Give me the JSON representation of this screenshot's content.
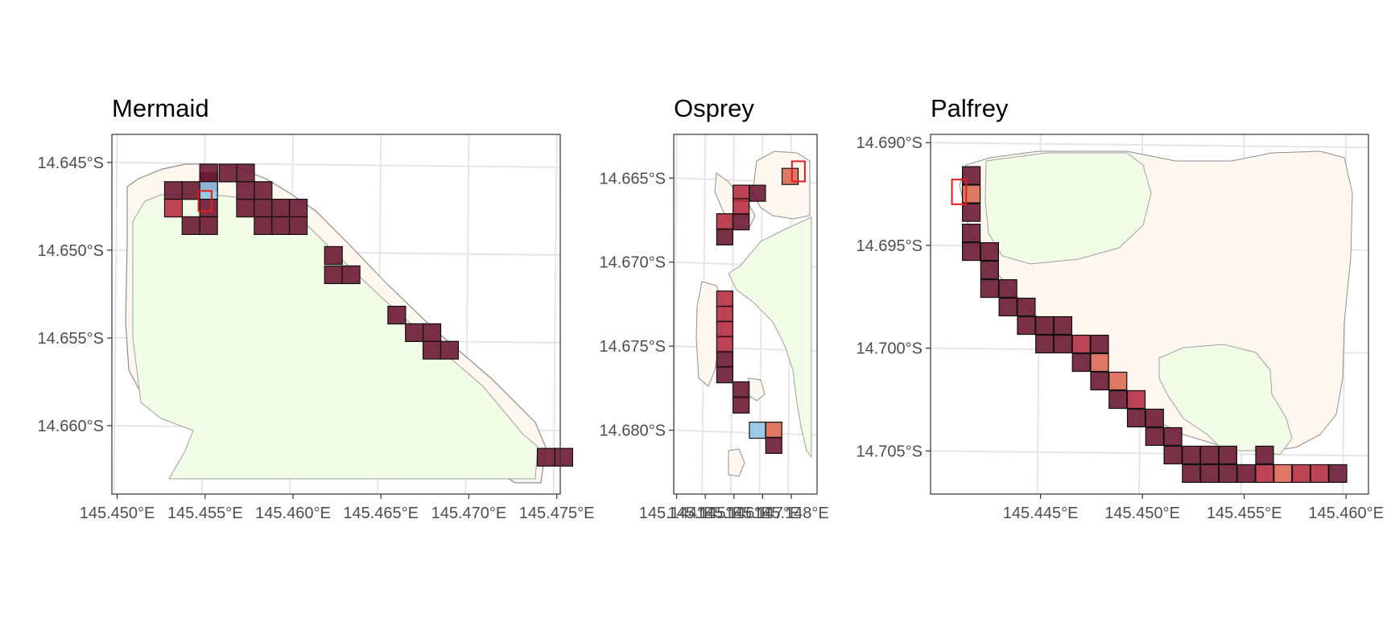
{
  "colors": {
    "background": "#ffffff",
    "grid": "#e6e6e6",
    "panel_border": "#333333",
    "land": "#fdf7f0",
    "reef_flat": "#f1fde6",
    "cell_dark": "#6b1a33",
    "cell_mid": "#b63043",
    "cell_light": "#dc6a55",
    "cell_blue": "#92c4e3",
    "highlight": "#e41a1c"
  },
  "chart_data": [
    {
      "type": "heatmap",
      "title": "Mermaid",
      "xlim": [
        145.4497,
        145.4752
      ],
      "ylim": [
        -14.6639,
        -14.6434
      ],
      "x_ticks": [
        145.45,
        145.455,
        145.46,
        145.465,
        145.47,
        145.475
      ],
      "x_tick_labels": [
        "145.450°E",
        "145.455°E",
        "145.460°E",
        "145.465°E",
        "145.470°E",
        "145.475°E"
      ],
      "y_ticks": [
        -14.645,
        -14.65,
        -14.655,
        -14.66
      ],
      "y_tick_labels": [
        "14.645°S",
        "14.650°S",
        "14.655°S",
        "14.660°S"
      ],
      "grid": true,
      "cell_size_deg": 0.001,
      "cells": [
        {
          "x": 145.4532,
          "y": -14.6466,
          "level": "dark"
        },
        {
          "x": 145.4542,
          "y": -14.6466,
          "level": "dark"
        },
        {
          "x": 145.4552,
          "y": -14.6461,
          "level": "dark"
        },
        {
          "x": 145.4563,
          "y": -14.6456,
          "level": "dark"
        },
        {
          "x": 145.4552,
          "y": -14.6456,
          "level": "dark"
        },
        {
          "x": 145.4573,
          "y": -14.6456,
          "level": "dark"
        },
        {
          "x": 145.4552,
          "y": -14.6466,
          "level": "blue"
        },
        {
          "x": 145.4532,
          "y": -14.6476,
          "level": "mid"
        },
        {
          "x": 145.4552,
          "y": -14.6476,
          "level": "dark"
        },
        {
          "x": 145.4542,
          "y": -14.6486,
          "level": "dark"
        },
        {
          "x": 145.4552,
          "y": -14.6486,
          "level": "dark"
        },
        {
          "x": 145.4573,
          "y": -14.6466,
          "level": "dark"
        },
        {
          "x": 145.4583,
          "y": -14.6466,
          "level": "dark"
        },
        {
          "x": 145.4573,
          "y": -14.6476,
          "level": "dark"
        },
        {
          "x": 145.4583,
          "y": -14.6476,
          "level": "dark"
        },
        {
          "x": 145.4593,
          "y": -14.6476,
          "level": "dark"
        },
        {
          "x": 145.4603,
          "y": -14.6476,
          "level": "dark"
        },
        {
          "x": 145.4583,
          "y": -14.6486,
          "level": "dark"
        },
        {
          "x": 145.4593,
          "y": -14.6486,
          "level": "dark"
        },
        {
          "x": 145.4603,
          "y": -14.6486,
          "level": "dark"
        },
        {
          "x": 145.4623,
          "y": -14.6503,
          "level": "dark"
        },
        {
          "x": 145.4623,
          "y": -14.6514,
          "level": "dark"
        },
        {
          "x": 145.4633,
          "y": -14.6514,
          "level": "dark"
        },
        {
          "x": 145.4659,
          "y": -14.6537,
          "level": "dark"
        },
        {
          "x": 145.4669,
          "y": -14.6547,
          "level": "dark"
        },
        {
          "x": 145.4679,
          "y": -14.6547,
          "level": "dark"
        },
        {
          "x": 145.4679,
          "y": -14.6557,
          "level": "dark"
        },
        {
          "x": 145.4689,
          "y": -14.6557,
          "level": "dark"
        },
        {
          "x": 145.4744,
          "y": -14.6618,
          "level": "dark"
        },
        {
          "x": 145.4754,
          "y": -14.6618,
          "level": "dark"
        }
      ],
      "highlight_box": {
        "x": 145.455,
        "y": -14.6472,
        "w": 0.00075,
        "h": 0.00115
      }
    },
    {
      "type": "heatmap",
      "title": "Osprey",
      "xlim": [
        145.1439,
        145.1489
      ],
      "ylim": [
        -14.6838,
        -14.6624
      ],
      "x_ticks": [
        145.144,
        145.145,
        145.146,
        145.147,
        145.148
      ],
      "x_tick_labels": [
        "145.144°E",
        "145.145°E",
        "145.146°E",
        "145.147°E",
        "145.148°E"
      ],
      "y_ticks": [
        -14.665,
        -14.67,
        -14.675,
        -14.68
      ],
      "y_tick_labels": [
        "14.665°S",
        "14.670°S",
        "14.675°S",
        "14.680°S"
      ],
      "grid": true,
      "cells": [
        {
          "x": 145.14625,
          "y": -14.6659,
          "level": "mid"
        },
        {
          "x": 145.14682,
          "y": -14.6659,
          "level": "dark"
        },
        {
          "x": 145.14625,
          "y": -14.6667,
          "level": "mid"
        },
        {
          "x": 145.14568,
          "y": -14.6676,
          "level": "mid"
        },
        {
          "x": 145.14625,
          "y": -14.6676,
          "level": "dark"
        },
        {
          "x": 145.14568,
          "y": -14.6685,
          "level": "dark"
        },
        {
          "x": 145.14568,
          "y": -14.6722,
          "level": "mid"
        },
        {
          "x": 145.14568,
          "y": -14.6731,
          "level": "mid"
        },
        {
          "x": 145.14568,
          "y": -14.674,
          "level": "mid"
        },
        {
          "x": 145.14568,
          "y": -14.6749,
          "level": "mid"
        },
        {
          "x": 145.14568,
          "y": -14.6758,
          "level": "dark"
        },
        {
          "x": 145.14568,
          "y": -14.6767,
          "level": "dark"
        },
        {
          "x": 145.14625,
          "y": -14.6776,
          "level": "dark"
        },
        {
          "x": 145.14625,
          "y": -14.6785,
          "level": "dark"
        },
        {
          "x": 145.14682,
          "y": -14.68,
          "level": "blue"
        },
        {
          "x": 145.14739,
          "y": -14.68,
          "level": "light"
        },
        {
          "x": 145.14739,
          "y": -14.6809,
          "level": "dark"
        },
        {
          "x": 145.14796,
          "y": -14.6649,
          "level": "light"
        }
      ],
      "highlight_box": {
        "x": 145.14825,
        "y": -14.6646,
        "w": 0.00045,
        "h": 0.0012
      }
    },
    {
      "type": "heatmap",
      "title": "Palfrey",
      "xlim": [
        145.4396,
        145.4611
      ],
      "ylim": [
        -14.7071,
        -14.6896
      ],
      "x_ticks": [
        145.445,
        145.45,
        145.455,
        145.46
      ],
      "x_tick_labels": [
        "145.445°E",
        "145.450°E",
        "145.455°E",
        "145.460°E"
      ],
      "y_ticks": [
        -14.69,
        -14.695,
        -14.7,
        -14.705
      ],
      "y_tick_labels": [
        "14.690°S",
        "14.695°S",
        "14.700°S",
        "14.705°S"
      ],
      "grid": true,
      "cells": [
        {
          "x": 145.4416,
          "y": -14.6916,
          "level": "dark"
        },
        {
          "x": 145.4416,
          "y": -14.6925,
          "level": "light"
        },
        {
          "x": 145.4416,
          "y": -14.6934,
          "level": "dark"
        },
        {
          "x": 145.4416,
          "y": -14.6944,
          "level": "dark"
        },
        {
          "x": 145.4416,
          "y": -14.6953,
          "level": "dark"
        },
        {
          "x": 145.4425,
          "y": -14.6953,
          "level": "dark"
        },
        {
          "x": 145.4425,
          "y": -14.6962,
          "level": "dark"
        },
        {
          "x": 145.4425,
          "y": -14.6971,
          "level": "dark"
        },
        {
          "x": 145.4434,
          "y": -14.6971,
          "level": "dark"
        },
        {
          "x": 145.4434,
          "y": -14.698,
          "level": "dark"
        },
        {
          "x": 145.4443,
          "y": -14.698,
          "level": "dark"
        },
        {
          "x": 145.4443,
          "y": -14.6989,
          "level": "dark"
        },
        {
          "x": 145.4452,
          "y": -14.6989,
          "level": "dark"
        },
        {
          "x": 145.4452,
          "y": -14.6998,
          "level": "dark"
        },
        {
          "x": 145.4461,
          "y": -14.6989,
          "level": "dark"
        },
        {
          "x": 145.4461,
          "y": -14.6998,
          "level": "dark"
        },
        {
          "x": 145.447,
          "y": -14.6998,
          "level": "mid"
        },
        {
          "x": 145.4479,
          "y": -14.6998,
          "level": "dark"
        },
        {
          "x": 145.447,
          "y": -14.7007,
          "level": "dark"
        },
        {
          "x": 145.4479,
          "y": -14.7007,
          "level": "light"
        },
        {
          "x": 145.4479,
          "y": -14.7016,
          "level": "dark"
        },
        {
          "x": 145.4488,
          "y": -14.7016,
          "level": "light"
        },
        {
          "x": 145.4488,
          "y": -14.7025,
          "level": "dark"
        },
        {
          "x": 145.4497,
          "y": -14.7025,
          "level": "mid"
        },
        {
          "x": 145.4497,
          "y": -14.7034,
          "level": "dark"
        },
        {
          "x": 145.4506,
          "y": -14.7034,
          "level": "dark"
        },
        {
          "x": 145.4506,
          "y": -14.7043,
          "level": "dark"
        },
        {
          "x": 145.4515,
          "y": -14.7043,
          "level": "dark"
        },
        {
          "x": 145.4515,
          "y": -14.7052,
          "level": "dark"
        },
        {
          "x": 145.4524,
          "y": -14.7052,
          "level": "dark"
        },
        {
          "x": 145.4533,
          "y": -14.7052,
          "level": "dark"
        },
        {
          "x": 145.4542,
          "y": -14.7052,
          "level": "dark"
        },
        {
          "x": 145.4524,
          "y": -14.7061,
          "level": "dark"
        },
        {
          "x": 145.4533,
          "y": -14.7061,
          "level": "dark"
        },
        {
          "x": 145.4542,
          "y": -14.7061,
          "level": "dark"
        },
        {
          "x": 145.4551,
          "y": -14.7061,
          "level": "dark"
        },
        {
          "x": 145.456,
          "y": -14.7052,
          "level": "dark"
        },
        {
          "x": 145.456,
          "y": -14.7061,
          "level": "mid"
        },
        {
          "x": 145.4569,
          "y": -14.7061,
          "level": "light"
        },
        {
          "x": 145.4578,
          "y": -14.7061,
          "level": "mid"
        },
        {
          "x": 145.4587,
          "y": -14.7061,
          "level": "mid"
        },
        {
          "x": 145.4596,
          "y": -14.7061,
          "level": "dark"
        }
      ],
      "highlight_box": {
        "x": 145.441,
        "y": -14.6924,
        "w": 0.0007,
        "h": 0.0012
      }
    }
  ]
}
